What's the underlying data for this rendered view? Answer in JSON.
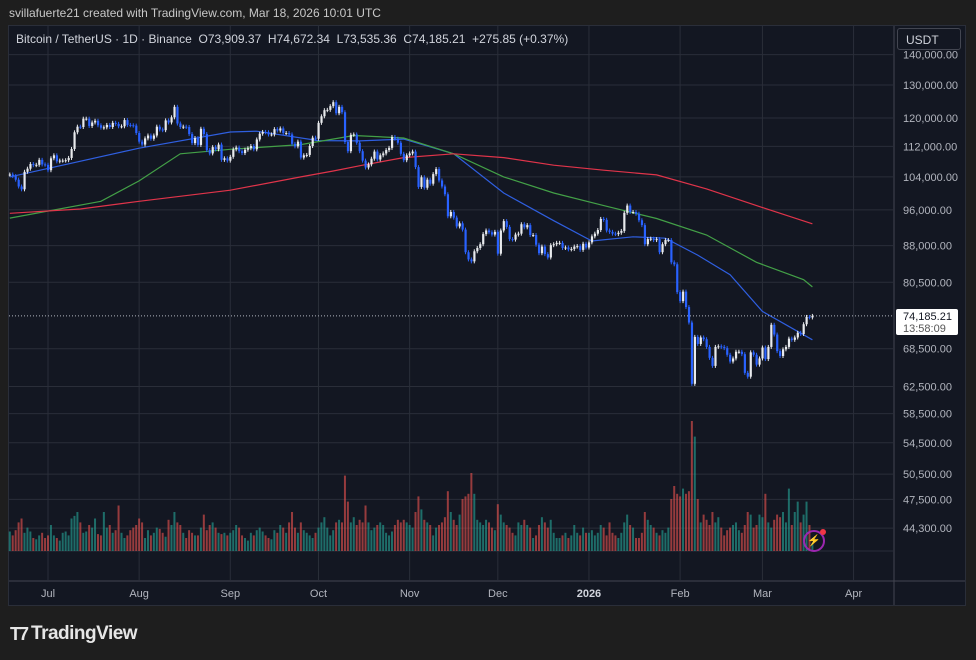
{
  "credit": "svillafuerte21 created with TradingView.com, Mar 18, 2026 10:01 UTC",
  "legend": {
    "symbol": "Bitcoin / TetherUS · 1D · Binance",
    "open": "O73,909.37",
    "high": "H74,672.34",
    "low": "L73,535.36",
    "close": "C74,185.21",
    "change": "+275.85 (+0.37%)"
  },
  "currency": "USDT",
  "last_price": {
    "price": "74,185.21",
    "countdown": "13:58:09"
  },
  "logo": "TradingView",
  "icons": {
    "logo": "tradingview-logo-icon",
    "alert": "lightning-icon"
  },
  "colors": {
    "up": "#e8eaed",
    "down": "#2962ff",
    "vol_up": "#26a69a",
    "vol_down": "#ef5350",
    "ma_blue": "#2f5fe0",
    "ma_green": "#43a047",
    "ma_red": "#e0344a",
    "background": "#131722"
  },
  "chart_data": {
    "type": "candlestick",
    "title": "Bitcoin / TetherUS · 1D · Binance",
    "y_scale": "log",
    "ylim": [
      42000,
      145000
    ],
    "grid": true,
    "y_ticks": [
      140000,
      130000,
      120000,
      112000,
      104000,
      96000,
      88000,
      80500,
      68500,
      62500,
      58500,
      54500,
      50500,
      47500,
      44300
    ],
    "y_tick_labels": [
      "140,000.00",
      "130,000.00",
      "120,000.00",
      "112,000.00",
      "104,000.00",
      "96,000.00",
      "88,000.00",
      "80,500.00",
      "68,500.00",
      "62,500.00",
      "58,500.00",
      "54,500.00",
      "50,500.00",
      "47,500.00",
      "44,300.00"
    ],
    "x_ticks": [
      {
        "label": "Jul",
        "date": "2025-07-01"
      },
      {
        "label": "Aug",
        "date": "2025-08-01"
      },
      {
        "label": "Sep",
        "date": "2025-09-01"
      },
      {
        "label": "Oct",
        "date": "2025-10-01"
      },
      {
        "label": "Nov",
        "date": "2025-11-01"
      },
      {
        "label": "Dec",
        "date": "2025-12-01"
      },
      {
        "label": "2026",
        "date": "2026-01-01",
        "bold": true
      },
      {
        "label": "Feb",
        "date": "2026-02-01"
      },
      {
        "label": "Mar",
        "date": "2026-03-01"
      },
      {
        "label": "Apr",
        "date": "2026-04-01"
      }
    ],
    "first_date": "2025-06-18",
    "closes": [
      104600,
      104200,
      103300,
      101600,
      100900,
      105300,
      106100,
      107300,
      107000,
      107100,
      108400,
      107200,
      107100,
      105700,
      108800,
      109600,
      108000,
      108200,
      108200,
      108300,
      108900,
      111300,
      115900,
      117500,
      117400,
      119800,
      119800,
      117700,
      118700,
      119200,
      117900,
      117200,
      117300,
      118000,
      117400,
      118600,
      118300,
      117600,
      117600,
      119400,
      118000,
      117900,
      117800,
      115700,
      113300,
      112500,
      114200,
      115000,
      114100,
      115000,
      117500,
      116700,
      116500,
      119300,
      118700,
      120200,
      123300,
      118400,
      117400,
      117500,
      117400,
      115400,
      112900,
      114300,
      112400,
      116900,
      115400,
      111000,
      110100,
      111800,
      111200,
      112500,
      108400,
      108800,
      108200,
      109200,
      111200,
      111700,
      110700,
      110200,
      111100,
      111500,
      112100,
      111200,
      113900,
      115500,
      116000,
      115900,
      115300,
      115300,
      116800,
      116400,
      117000,
      115700,
      115700,
      115300,
      112700,
      112000,
      113300,
      109000,
      109600,
      109700,
      112100,
      114400,
      114100,
      118600,
      120500,
      122300,
      122400,
      123500,
      124700,
      121400,
      123300,
      121700,
      113200,
      110700,
      115200,
      115300,
      113000,
      110700,
      108200,
      106400,
      107200,
      108700,
      110600,
      108500,
      109600,
      110100,
      111000,
      111600,
      114600,
      114100,
      113000,
      110000,
      108300,
      109600,
      110100,
      110600,
      106500,
      101500,
      103900,
      101300,
      103300,
      102300,
      104700,
      106000,
      103100,
      101600,
      99700,
      94500,
      95500,
      94200,
      92200,
      92900,
      91500,
      86600,
      85100,
      84700,
      86800,
      87500,
      88300,
      90500,
      91300,
      90900,
      90400,
      91000,
      86300,
      91300,
      93400,
      92100,
      89400,
      89300,
      90400,
      90600,
      92700,
      92000,
      92500,
      90300,
      90300,
      88200,
      86400,
      87800,
      86200,
      85500,
      88100,
      88300,
      88600,
      88600,
      87500,
      87600,
      87200,
      87300,
      87800,
      87900,
      87100,
      88400,
      87600,
      88700,
      90000,
      90600,
      91400,
      93900,
      93700,
      91300,
      91000,
      90600,
      90500,
      90800,
      91200,
      95300,
      97000,
      95500,
      95500,
      95100,
      93600,
      92500,
      88300,
      89400,
      89500,
      89200,
      89400,
      86600,
      88300,
      89200,
      89200,
      84500,
      84100,
      78600,
      76900,
      78700,
      75800,
      73000,
      62900,
      70500,
      69300,
      70400,
      70100,
      68800,
      67000,
      65700,
      68800,
      68900,
      68800,
      68600,
      67500,
      66400,
      66900,
      68000,
      68000,
      67600,
      64600,
      64000,
      67900,
      67500,
      65900,
      66900,
      68700,
      66800,
      68800,
      72600,
      70900,
      68100,
      67300,
      68400,
      68800,
      70200,
      70000,
      70400,
      71200,
      71000,
      72700,
      74000,
      73909.37,
      74185.21
    ],
    "volumes_relative": [
      15,
      12,
      16,
      22,
      25,
      14,
      18,
      15,
      10,
      9,
      12,
      14,
      10,
      12,
      20,
      12,
      10,
      8,
      14,
      15,
      12,
      25,
      27,
      30,
      22,
      14,
      15,
      20,
      18,
      25,
      13,
      12,
      30,
      18,
      20,
      14,
      16,
      35,
      14,
      10,
      12,
      16,
      18,
      20,
      25,
      22,
      10,
      16,
      12,
      14,
      18,
      17,
      14,
      11,
      24,
      20,
      30,
      22,
      20,
      14,
      10,
      16,
      14,
      12,
      12,
      18,
      28,
      16,
      20,
      22,
      18,
      14,
      13,
      14,
      12,
      14,
      16,
      20,
      18,
      12,
      10,
      8,
      14,
      12,
      16,
      18,
      15,
      12,
      10,
      9,
      16,
      14,
      20,
      18,
      14,
      22,
      30,
      18,
      14,
      22,
      16,
      14,
      12,
      10,
      14,
      18,
      22,
      26,
      18,
      12,
      16,
      22,
      24,
      22,
      58,
      38,
      22,
      26,
      20,
      24,
      22,
      35,
      22,
      16,
      18,
      20,
      22,
      20,
      14,
      12,
      15,
      20,
      24,
      22,
      24,
      22,
      20,
      18,
      30,
      42,
      32,
      24,
      22,
      20,
      12,
      18,
      20,
      22,
      26,
      46,
      30,
      24,
      20,
      28,
      40,
      42,
      44,
      60,
      44,
      24,
      22,
      20,
      24,
      22,
      18,
      16,
      36,
      28,
      22,
      20,
      18,
      14,
      12,
      22,
      20,
      24,
      20,
      18,
      10,
      12,
      20,
      26,
      22,
      18,
      24,
      14,
      10,
      10,
      12,
      14,
      10,
      12,
      20,
      14,
      12,
      18,
      14,
      14,
      16,
      12,
      14,
      20,
      18,
      12,
      22,
      14,
      12,
      10,
      14,
      22,
      28,
      20,
      18,
      10,
      10,
      14,
      30,
      24,
      20,
      18,
      14,
      12,
      16,
      14,
      18,
      40,
      50,
      44,
      42,
      48,
      44,
      46,
      100,
      88,
      40,
      22,
      28,
      24,
      20,
      30,
      22,
      26,
      18,
      12,
      16,
      18,
      20,
      22,
      16,
      14,
      20,
      30,
      28,
      18,
      20,
      28,
      26,
      44,
      22,
      18,
      24,
      28,
      26,
      30,
      22,
      48,
      20,
      30,
      38,
      22,
      28,
      38,
      20,
      6
    ],
    "moving_averages": [
      {
        "color_key": "ma_blue",
        "points": [
          [
            "2025-06-18",
            104000
          ],
          [
            "2025-08-01",
            111500
          ],
          [
            "2025-09-01",
            116000
          ],
          [
            "2025-09-10",
            116200
          ],
          [
            "2025-10-01",
            113600
          ],
          [
            "2025-10-15",
            113500
          ],
          [
            "2025-10-30",
            114000
          ],
          [
            "2025-11-16",
            110000
          ],
          [
            "2025-12-03",
            100000
          ],
          [
            "2025-12-20",
            93500
          ],
          [
            "2026-01-02",
            89000
          ],
          [
            "2026-01-16",
            89900
          ],
          [
            "2026-01-27",
            89600
          ],
          [
            "2026-02-07",
            86000
          ],
          [
            "2026-02-18",
            82000
          ],
          [
            "2026-03-01",
            75000
          ],
          [
            "2026-03-18",
            70000
          ]
        ]
      },
      {
        "color_key": "ma_green",
        "points": [
          [
            "2025-06-18",
            94100
          ],
          [
            "2025-07-19",
            98000
          ],
          [
            "2025-08-01",
            103000
          ],
          [
            "2025-08-15",
            110000
          ],
          [
            "2025-09-01",
            111200
          ],
          [
            "2025-09-25",
            112500
          ],
          [
            "2025-10-13",
            115000
          ],
          [
            "2025-10-30",
            114300
          ],
          [
            "2025-11-16",
            110000
          ],
          [
            "2025-12-03",
            104000
          ],
          [
            "2025-12-20",
            100000
          ],
          [
            "2026-01-06",
            97000
          ],
          [
            "2026-01-24",
            94000
          ],
          [
            "2026-02-10",
            90300
          ],
          [
            "2026-02-27",
            84500
          ],
          [
            "2026-03-15",
            81000
          ],
          [
            "2026-03-18",
            79600
          ]
        ]
      },
      {
        "color_key": "ma_red",
        "points": [
          [
            "2025-06-18",
            95200
          ],
          [
            "2025-07-12",
            96200
          ],
          [
            "2025-08-01",
            98000
          ],
          [
            "2025-09-01",
            100700
          ],
          [
            "2025-09-25",
            104000
          ],
          [
            "2025-10-06",
            105500
          ],
          [
            "2025-10-16",
            107000
          ],
          [
            "2025-10-30",
            109000
          ],
          [
            "2025-11-16",
            110000
          ],
          [
            "2025-12-03",
            109000
          ],
          [
            "2025-12-20",
            107000
          ],
          [
            "2026-01-06",
            105700
          ],
          [
            "2026-01-24",
            104500
          ],
          [
            "2026-02-10",
            101000
          ],
          [
            "2026-02-27",
            97000
          ],
          [
            "2026-03-18",
            92800
          ]
        ]
      }
    ]
  }
}
